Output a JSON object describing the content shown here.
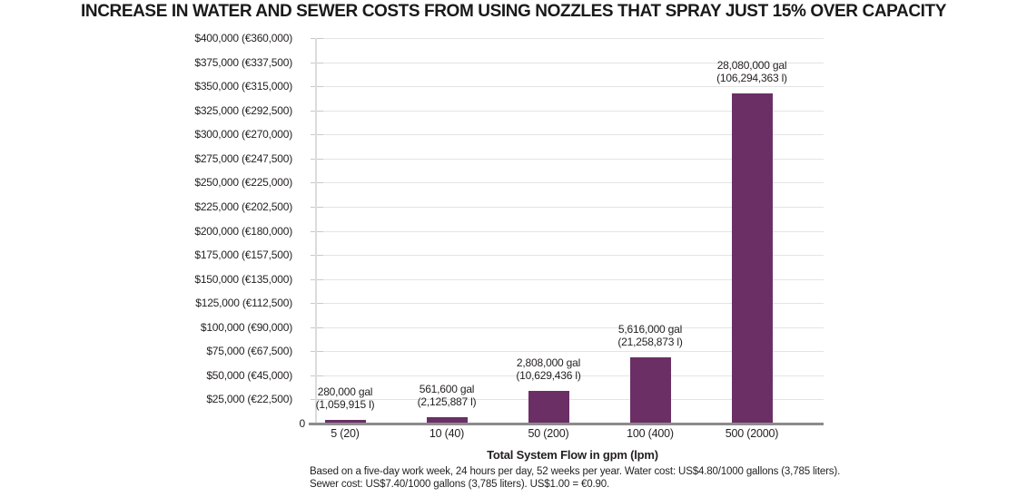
{
  "chart_data": {
    "type": "bar",
    "title": "INCREASE IN WATER AND SEWER COSTS FROM USING NOZZLES THAT SPRAY JUST 15% OVER CAPACITY",
    "xlabel": "Total System Flow in gpm (lpm)",
    "ylabel": "",
    "categories": [
      "5 (20)",
      "10 (40)",
      "50 (200)",
      "100 (400)",
      "500 (2000)"
    ],
    "values_usd_estimated": [
      3416,
      6852,
      34258,
      68515,
      342576
    ],
    "gallons": [
      280000,
      561600,
      2808000,
      5616000,
      28080000
    ],
    "liters": [
      1059915,
      2125887,
      10629436,
      21258873,
      106294363
    ],
    "bar_labels": [
      [
        "280,000 gal",
        "(1,059,915 l)"
      ],
      [
        "561,600 gal",
        "(2,125,887 l)"
      ],
      [
        "2,808,000 gal",
        "(10,629,436 l)"
      ],
      [
        "5,616,000 gal",
        "(21,258,873 l)"
      ],
      [
        "28,080,000 gal",
        "(106,294,363 l)"
      ]
    ],
    "y_ticks": [
      "$400,000 (€360,000)",
      "$375,000 (€337,500)",
      "$350,000 (€315,000)",
      "$325,000 (€292,500)",
      "$300,000 (€270,000)",
      "$275,000 (€247,500)",
      "$250,000 (€225,000)",
      "$225,000 (€202,500)",
      "$200,000 (€180,000)",
      "$175,000 (€157,500)",
      "$150,000 (€135,000)",
      "$125,000 (€112,500)",
      "$100,000 (€90,000)",
      "$75,000 (€67,500)",
      "$50,000 (€45,000)",
      "$25,000 (€22,500)",
      "0"
    ],
    "ylim": [
      0,
      400000
    ],
    "grid": true,
    "legend": "none",
    "bar_color": "#6B2F66"
  },
  "footnote": {
    "line1": "Based on a five-day work week, 24 hours per day, 52 weeks per year. Water cost: US$4.80/1000 gallons (3,785 liters).",
    "line2": "Sewer cost: US$7.40/1000 gallons (3,785 liters). US$1.00 = €0.90."
  }
}
